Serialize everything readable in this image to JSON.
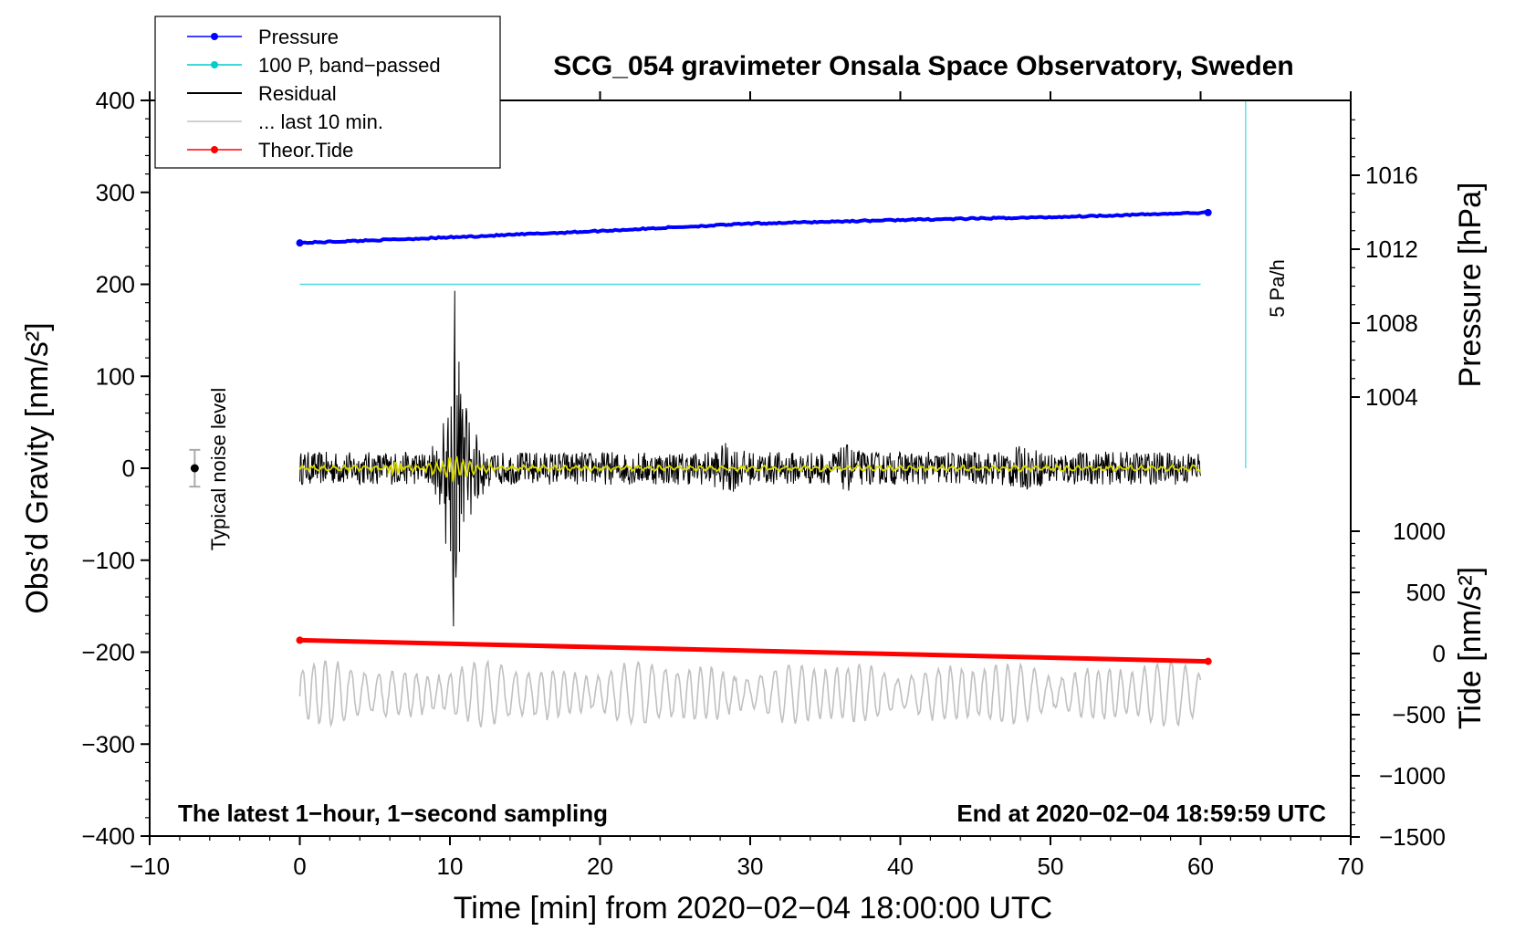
{
  "chart_data": {
    "type": "line",
    "title": "SCG_054 gravimeter Onsala Space Observatory, Sweden",
    "xlabel": "Time [min] from 2020−02−04 18:00:00 UTC",
    "ylabel_left": "Obs’d Gravity [nm/s²]",
    "ylabel_right_top": "Pressure [hPa]",
    "ylabel_right_bottom": "Tide [nm/s²]",
    "annotation_left": "The latest 1−hour, 1−second sampling",
    "annotation_right": "End at 2020−02−04 18:59:59 UTC",
    "noise_label": "Typical noise level",
    "rate_label": "5 Pa/h",
    "xlim": [
      -10,
      70
    ],
    "ylim_left": [
      -400,
      400
    ],
    "x_ticks": [
      "−10",
      "0",
      "10",
      "20",
      "30",
      "40",
      "50",
      "60",
      "70"
    ],
    "y_ticks_left": [
      "400",
      "300",
      "200",
      "100",
      "0",
      "−100",
      "−200",
      "−300",
      "−400"
    ],
    "pressure_ticks": [
      "1016",
      "1012",
      "1008",
      "1004"
    ],
    "tide_ticks": [
      "1000",
      "500",
      "0",
      "−500",
      "−1000",
      "−1500"
    ],
    "legend": [
      {
        "label": "Pressure",
        "color": "#0000ff",
        "marker": true
      },
      {
        "label": "100 P, band−passed",
        "color": "#00cccc",
        "marker": true
      },
      {
        "label": "Residual",
        "color": "#000000",
        "marker": false
      },
      {
        "label": "... last 10 min.",
        "color": "#c0c0c0",
        "marker": false
      },
      {
        "label": "Theor.Tide",
        "color": "#ff0000",
        "marker": true
      }
    ],
    "series": [
      {
        "name": "Pressure",
        "color": "#0000ff",
        "x": [
          0,
          10,
          20,
          30,
          40,
          50,
          60.5
        ],
        "y": [
          245,
          251,
          258,
          266,
          270,
          273,
          278
        ]
      },
      {
        "name": "100 P, band−passed",
        "color": "#00cccc",
        "x": [
          0,
          60
        ],
        "y": [
          200,
          200
        ]
      },
      {
        "name": "Residual",
        "color": "#000000",
        "x_range": [
          0,
          60
        ],
        "center": 0
      },
      {
        "name": "... last 10 min.",
        "color": "#c0c0c0",
        "x_range": [
          0,
          60
        ],
        "center": -245
      },
      {
        "name": "Theor.Tide",
        "color": "#ff0000",
        "x": [
          0,
          60.5
        ],
        "y": [
          -187,
          -210
        ]
      }
    ],
    "noise_bar": {
      "x": -7,
      "y": 0,
      "err": 20
    },
    "rate_line": {
      "x": 63,
      "y": [
        0,
        400
      ]
    }
  },
  "colors": {
    "residual_filtered": "#d8d800"
  }
}
